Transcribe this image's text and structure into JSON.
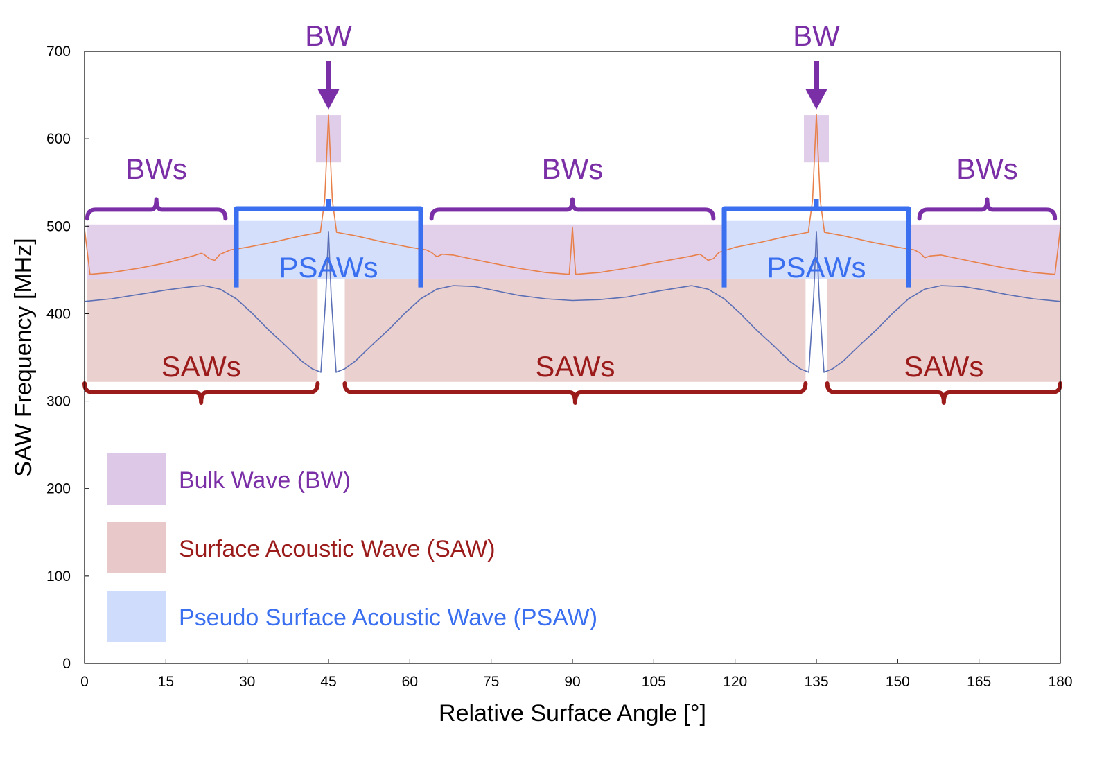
{
  "chart_data": {
    "type": "line",
    "title": "",
    "xlabel": "Relative Surface Angle [°]",
    "ylabel": "SAW Frequency [MHz]",
    "xlim": [
      0,
      180
    ],
    "ylim": [
      0,
      700
    ],
    "x_ticks": [
      0,
      15,
      30,
      45,
      60,
      75,
      90,
      105,
      120,
      135,
      150,
      165,
      180
    ],
    "y_ticks": [
      0,
      100,
      200,
      300,
      400,
      500,
      600,
      700
    ],
    "grid": false,
    "series": [
      {
        "color": "#e8804a",
        "points": [
          [
            0,
            497
          ],
          [
            1,
            445
          ],
          [
            5,
            447
          ],
          [
            10,
            452
          ],
          [
            15,
            458
          ],
          [
            20,
            466
          ],
          [
            21.5,
            469
          ],
          [
            22,
            468
          ],
          [
            23,
            463
          ],
          [
            24,
            461
          ],
          [
            25,
            468
          ],
          [
            27,
            473
          ],
          [
            30,
            476
          ],
          [
            35,
            482
          ],
          [
            40,
            489
          ],
          [
            43.5,
            493
          ],
          [
            44.3,
            530
          ],
          [
            45,
            627
          ],
          [
            45.7,
            530
          ],
          [
            46.5,
            493
          ],
          [
            50,
            489
          ],
          [
            55,
            482
          ],
          [
            60,
            476
          ],
          [
            63,
            473
          ],
          [
            64,
            470
          ],
          [
            65,
            465
          ],
          [
            66,
            468
          ],
          [
            68,
            467
          ],
          [
            75,
            458
          ],
          [
            80,
            452
          ],
          [
            85,
            447
          ],
          [
            89.4,
            445
          ],
          [
            89.7,
            470
          ],
          [
            90,
            499
          ],
          [
            90.3,
            470
          ],
          [
            90.6,
            445
          ],
          [
            95,
            447
          ],
          [
            100,
            452
          ],
          [
            105,
            458
          ],
          [
            112,
            466
          ],
          [
            113.5,
            468
          ],
          [
            114,
            466
          ],
          [
            115,
            461
          ],
          [
            116,
            463
          ],
          [
            117,
            470
          ],
          [
            120,
            476
          ],
          [
            125,
            482
          ],
          [
            130,
            489
          ],
          [
            133.5,
            493
          ],
          [
            134.3,
            530
          ],
          [
            135,
            628
          ],
          [
            135.7,
            530
          ],
          [
            136.5,
            493
          ],
          [
            140,
            489
          ],
          [
            145,
            482
          ],
          [
            150,
            476
          ],
          [
            153,
            473
          ],
          [
            154,
            470
          ],
          [
            155,
            464
          ],
          [
            156,
            466
          ],
          [
            158,
            467
          ],
          [
            165,
            458
          ],
          [
            170,
            452
          ],
          [
            175,
            447
          ],
          [
            179,
            445
          ],
          [
            180,
            498
          ]
        ]
      },
      {
        "color": "#5b6fb5",
        "points": [
          [
            0,
            414
          ],
          [
            5,
            417
          ],
          [
            10,
            422
          ],
          [
            15,
            427
          ],
          [
            20,
            431
          ],
          [
            22,
            432
          ],
          [
            25,
            428
          ],
          [
            28,
            417
          ],
          [
            31,
            400
          ],
          [
            34,
            381
          ],
          [
            37,
            364
          ],
          [
            40,
            346
          ],
          [
            42,
            337
          ],
          [
            43.6,
            333
          ],
          [
            44.5,
            420
          ],
          [
            45,
            494
          ],
          [
            45.5,
            420
          ],
          [
            46.4,
            333
          ],
          [
            48,
            337
          ],
          [
            50,
            346
          ],
          [
            53,
            364
          ],
          [
            56,
            381
          ],
          [
            59,
            400
          ],
          [
            62,
            417
          ],
          [
            65,
            428
          ],
          [
            68,
            432
          ],
          [
            72,
            431
          ],
          [
            76,
            426
          ],
          [
            80,
            421
          ],
          [
            85,
            417
          ],
          [
            90,
            415
          ],
          [
            95,
            416
          ],
          [
            100,
            419
          ],
          [
            105,
            425
          ],
          [
            110,
            430
          ],
          [
            112,
            432
          ],
          [
            115,
            428
          ],
          [
            118,
            417
          ],
          [
            121,
            400
          ],
          [
            124,
            381
          ],
          [
            127,
            364
          ],
          [
            130,
            346
          ],
          [
            132,
            337
          ],
          [
            133.6,
            333
          ],
          [
            134.5,
            420
          ],
          [
            135,
            494
          ],
          [
            135.5,
            420
          ],
          [
            136.4,
            333
          ],
          [
            138,
            337
          ],
          [
            140,
            346
          ],
          [
            143,
            364
          ],
          [
            146,
            381
          ],
          [
            149,
            400
          ],
          [
            152,
            417
          ],
          [
            155,
            428
          ],
          [
            158,
            432
          ],
          [
            162,
            431
          ],
          [
            166,
            427
          ],
          [
            170,
            422
          ],
          [
            175,
            417
          ],
          [
            180,
            414
          ]
        ]
      }
    ],
    "regions": [
      {
        "label": "BWs",
        "x_range": [
          0.5,
          26
        ],
        "color": "#7b2fa6"
      },
      {
        "label": "BW",
        "x": 45,
        "color": "#7b2fa6"
      },
      {
        "label": "BWs",
        "x_range": [
          64,
          116
        ],
        "color": "#7b2fa6"
      },
      {
        "label": "BW",
        "x": 135,
        "color": "#7b2fa6"
      },
      {
        "label": "BWs",
        "x_range": [
          154,
          179
        ],
        "color": "#7b2fa6"
      },
      {
        "label": "PSAWs",
        "x_range": [
          28,
          62
        ],
        "color": "#3a6ff0"
      },
      {
        "label": "PSAWs",
        "x_range": [
          118,
          152
        ],
        "color": "#3a6ff0"
      },
      {
        "label": "SAWs",
        "x_range": [
          0,
          43
        ],
        "color": "#9b1b1b"
      },
      {
        "label": "SAWs",
        "x_range": [
          48,
          133
        ],
        "color": "#9b1b1b"
      },
      {
        "label": "SAWs",
        "x_range": [
          137,
          180
        ],
        "color": "#9b1b1b"
      }
    ],
    "legend": {
      "placement": "bottom-left",
      "entries": [
        {
          "label": "Bulk Wave (BW)",
          "color": "#7b2fa6",
          "fill": "#ddc8e8"
        },
        {
          "label": "Surface Acoustic Wave (SAW)",
          "color": "#9b1b1b",
          "fill": "#e8c8c8"
        },
        {
          "label": "Pseudo Surface Acoustic Wave (PSAW)",
          "color": "#3a6ff0",
          "fill": "#cfdcfb"
        }
      ]
    }
  }
}
